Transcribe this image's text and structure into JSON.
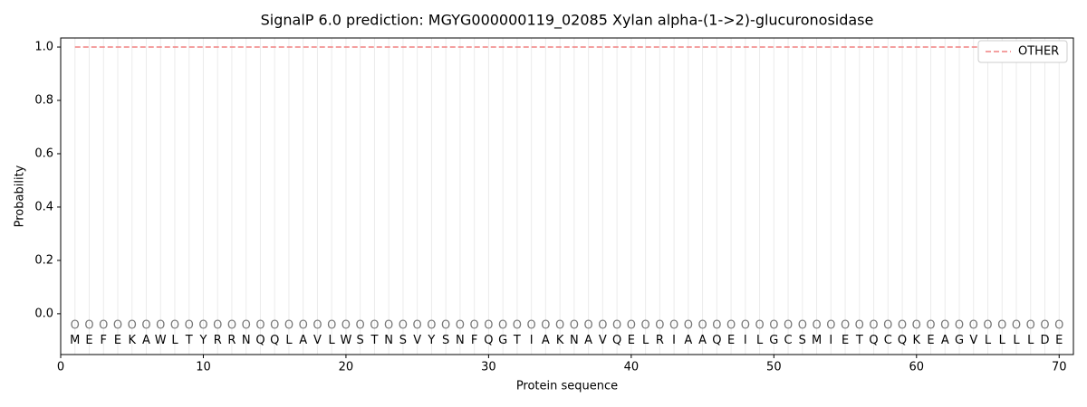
{
  "chart_data": {
    "type": "line",
    "title": "SignalP 6.0 prediction: MGYG000000119_02085 Xylan alpha-(1->2)-glucuronosidase",
    "xlabel": "Protein sequence",
    "ylabel": "Probability",
    "x": [
      1,
      2,
      3,
      4,
      5,
      6,
      7,
      8,
      9,
      10,
      11,
      12,
      13,
      14,
      15,
      16,
      17,
      18,
      19,
      20,
      21,
      22,
      23,
      24,
      25,
      26,
      27,
      28,
      29,
      30,
      31,
      32,
      33,
      34,
      35,
      36,
      37,
      38,
      39,
      40,
      41,
      42,
      43,
      44,
      45,
      46,
      47,
      48,
      49,
      50,
      51,
      52,
      53,
      54,
      55,
      56,
      57,
      58,
      59,
      60,
      61,
      62,
      63,
      64,
      65,
      66,
      67,
      68,
      69,
      70
    ],
    "residues": [
      "M",
      "E",
      "F",
      "E",
      "K",
      "A",
      "W",
      "L",
      "T",
      "Y",
      "R",
      "R",
      "N",
      "Q",
      "Q",
      "L",
      "A",
      "V",
      "L",
      "W",
      "S",
      "T",
      "N",
      "S",
      "V",
      "Y",
      "S",
      "N",
      "F",
      "Q",
      "G",
      "T",
      "I",
      "A",
      "K",
      "N",
      "A",
      "V",
      "Q",
      "E",
      "L",
      "R",
      "I",
      "A",
      "A",
      "Q",
      "E",
      "I",
      "L",
      "G",
      "C",
      "S",
      "M",
      "I",
      "E",
      "T",
      "Q",
      "C",
      "Q",
      "K",
      "E",
      "A",
      "G",
      "V",
      "L",
      "L",
      "L",
      "L",
      "D",
      "E"
    ],
    "labels": [
      "O",
      "O",
      "O",
      "O",
      "O",
      "O",
      "O",
      "O",
      "O",
      "O",
      "O",
      "O",
      "O",
      "O",
      "O",
      "O",
      "O",
      "O",
      "O",
      "O",
      "O",
      "O",
      "O",
      "O",
      "O",
      "O",
      "O",
      "O",
      "O",
      "O",
      "O",
      "O",
      "O",
      "O",
      "O",
      "O",
      "O",
      "O",
      "O",
      "O",
      "O",
      "O",
      "O",
      "O",
      "O",
      "O",
      "O",
      "O",
      "O",
      "O",
      "O",
      "O",
      "O",
      "O",
      "O",
      "O",
      "O",
      "O",
      "O",
      "O",
      "O",
      "O",
      "O",
      "O",
      "O",
      "O",
      "O",
      "O",
      "O",
      "O"
    ],
    "series": [
      {
        "name": "OTHER",
        "color": "#f08080",
        "dashed": true,
        "values": [
          1,
          1,
          1,
          1,
          1,
          1,
          1,
          1,
          1,
          1,
          1,
          1,
          1,
          1,
          1,
          1,
          1,
          1,
          1,
          1,
          1,
          1,
          1,
          1,
          1,
          1,
          1,
          1,
          1,
          1,
          1,
          1,
          1,
          1,
          1,
          1,
          1,
          1,
          1,
          1,
          1,
          1,
          1,
          1,
          1,
          1,
          1,
          1,
          1,
          1,
          1,
          1,
          1,
          1,
          1,
          1,
          1,
          1,
          1,
          1,
          1,
          1,
          1,
          1,
          1,
          1,
          1,
          1,
          1,
          1
        ]
      }
    ],
    "xlim": [
      0,
      71
    ],
    "ylim": [
      -0.153,
      1.034
    ],
    "xticks": [
      0,
      10,
      20,
      30,
      40,
      50,
      60,
      70
    ],
    "yticks": [
      {
        "value": 0,
        "label": "0.0"
      },
      0.2,
      0.4,
      0.6,
      0.8,
      {
        "value": 1,
        "label": "1.0"
      }
    ],
    "grid": true,
    "legend": "upper right"
  }
}
